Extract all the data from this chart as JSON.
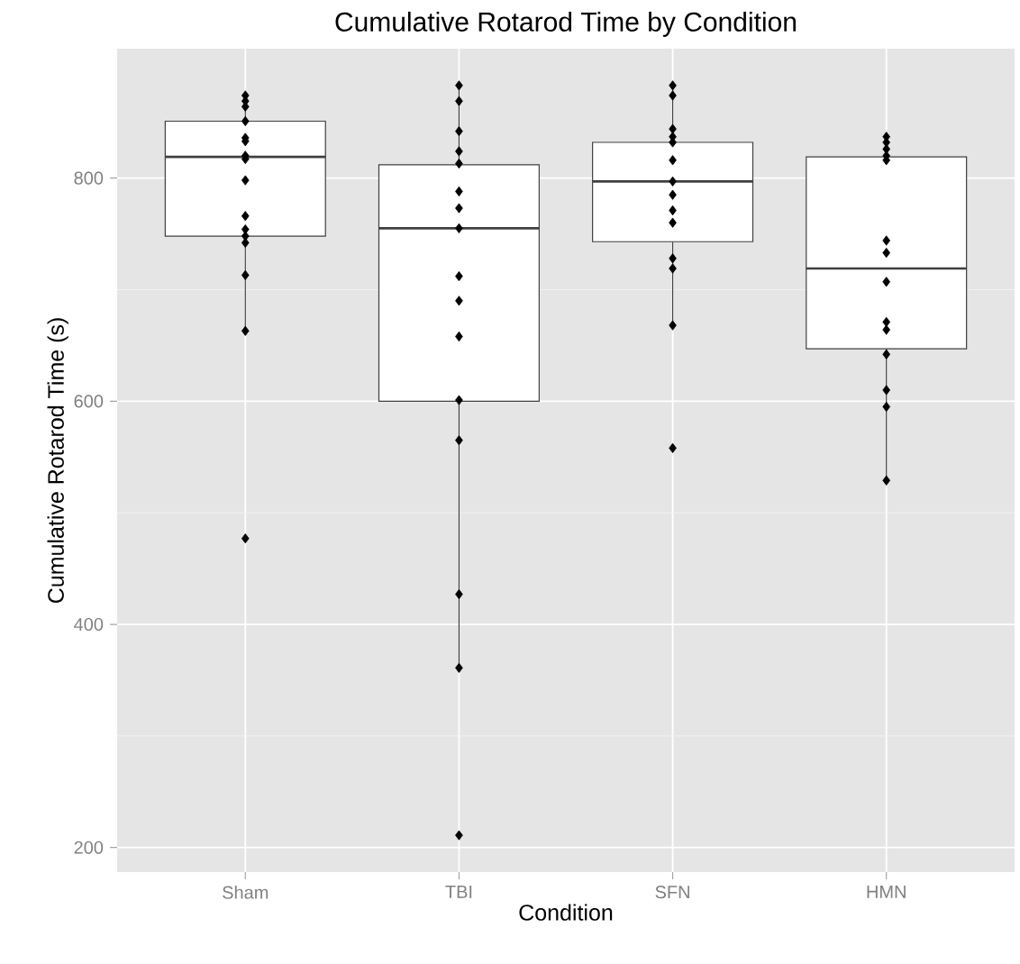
{
  "chart_data": {
    "type": "box",
    "title": "Cumulative Rotarod Time by Condition",
    "xlabel": "Condition",
    "ylabel": "Cumulative Rotarod Time (s)",
    "categories": [
      "Sham",
      "TBI",
      "SFN",
      "HMN"
    ],
    "ylim": [
      178,
      916
    ],
    "yticks": [
      200,
      400,
      600,
      800
    ],
    "grid": true,
    "boxes": [
      {
        "low": 663,
        "q1": 748,
        "median": 819,
        "q3": 851,
        "high": 874
      },
      {
        "low": 361,
        "q1": 600,
        "median": 755,
        "q3": 812,
        "high": 883
      },
      {
        "low": 668,
        "q1": 743,
        "median": 797,
        "q3": 832,
        "high": 883
      },
      {
        "low": 529,
        "q1": 647,
        "median": 719,
        "q3": 819,
        "high": 837
      }
    ],
    "series": [
      {
        "type": "scatter",
        "color": "#000000",
        "marker": "diamond",
        "x": [
          "Sham",
          "Sham",
          "Sham",
          "Sham",
          "Sham",
          "Sham",
          "Sham",
          "Sham",
          "Sham",
          "Sham",
          "Sham",
          "Sham",
          "Sham",
          "Sham",
          "Sham",
          "Sham",
          "TBI",
          "TBI",
          "TBI",
          "TBI",
          "TBI",
          "TBI",
          "TBI",
          "TBI",
          "TBI",
          "TBI",
          "TBI",
          "TBI",
          "TBI",
          "TBI",
          "TBI",
          "TBI",
          "SFN",
          "SFN",
          "SFN",
          "SFN",
          "SFN",
          "SFN",
          "SFN",
          "SFN",
          "SFN",
          "SFN",
          "SFN",
          "SFN",
          "SFN",
          "SFN",
          "HMN",
          "HMN",
          "HMN",
          "HMN",
          "HMN",
          "HMN",
          "HMN",
          "HMN",
          "HMN",
          "HMN",
          "HMN",
          "HMN",
          "HMN",
          "HMN"
        ],
        "values": [
          874,
          869,
          864,
          851,
          836,
          833,
          820,
          817,
          798,
          766,
          754,
          748,
          742,
          713,
          663,
          477,
          883,
          869,
          842,
          824,
          813,
          788,
          773,
          755,
          712,
          690,
          658,
          601,
          565,
          427,
          361,
          211,
          883,
          874,
          844,
          837,
          832,
          816,
          797,
          785,
          771,
          760,
          728,
          719,
          668,
          558,
          837,
          832,
          826,
          820,
          816,
          744,
          733,
          707,
          671,
          664,
          642,
          610,
          595,
          529
        ]
      }
    ]
  }
}
